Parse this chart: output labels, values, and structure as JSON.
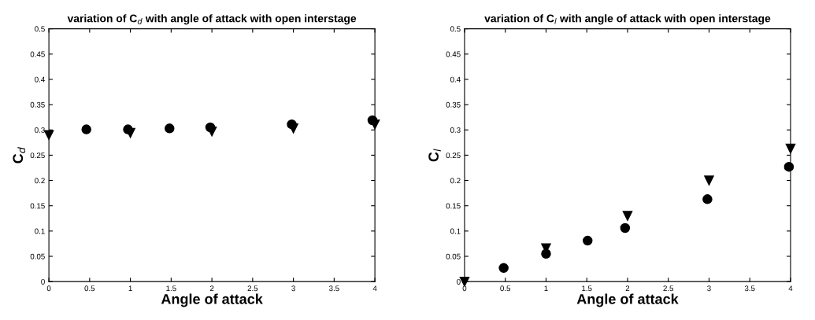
{
  "chart_data": [
    {
      "type": "scatter",
      "title": "variation of C$_{d}$ with angle of attack with open interstage",
      "xlabel": "Angle of attack",
      "ylabel": "C$_{d}$",
      "xlim": [
        0,
        4
      ],
      "ylim": [
        0,
        0.5
      ],
      "xticks": [
        0,
        0.5,
        1,
        1.5,
        2,
        2.5,
        3,
        3.5,
        4
      ],
      "yticks": [
        0,
        0.05,
        0.1,
        0.15,
        0.2,
        0.25,
        0.3,
        0.35,
        0.4,
        0.45,
        0.5
      ],
      "grid": false,
      "series": [
        {
          "color": "#000000",
          "marker": "triangle",
          "x": [
            0,
            1,
            2,
            3,
            4
          ],
          "values": [
            0.29,
            0.294,
            0.297,
            0.303,
            0.311
          ]
        },
        {
          "color": "#000000",
          "marker": "circle",
          "x": [
            0.46,
            0.97,
            1.48,
            1.98,
            2.98,
            3.97
          ],
          "values": [
            0.301,
            0.301,
            0.303,
            0.305,
            0.311,
            0.319
          ]
        }
      ]
    },
    {
      "type": "scatter",
      "title": "variation of C$_{l}$ with angle of attack with open interstage",
      "xlabel": "Angle of attack",
      "ylabel": "C$_{l}$",
      "xlim": [
        0,
        4
      ],
      "ylim": [
        0,
        0.5
      ],
      "xticks": [
        0,
        0.5,
        1,
        1.5,
        2,
        2.5,
        3,
        3.5,
        4
      ],
      "yticks": [
        0,
        0.05,
        0.1,
        0.15,
        0.2,
        0.25,
        0.3,
        0.35,
        0.4,
        0.45,
        0.5
      ],
      "grid": false,
      "series": [
        {
          "color": "#000000",
          "marker": "triangle",
          "x": [
            0,
            1,
            2,
            3,
            4
          ],
          "values": [
            0.0,
            0.066,
            0.13,
            0.2,
            0.263
          ]
        },
        {
          "color": "#000000",
          "marker": "circle",
          "x": [
            0.48,
            1.0,
            1.51,
            1.97,
            2.98,
            3.98
          ],
          "values": [
            0.027,
            0.055,
            0.081,
            0.106,
            0.163,
            0.227
          ]
        }
      ]
    }
  ]
}
